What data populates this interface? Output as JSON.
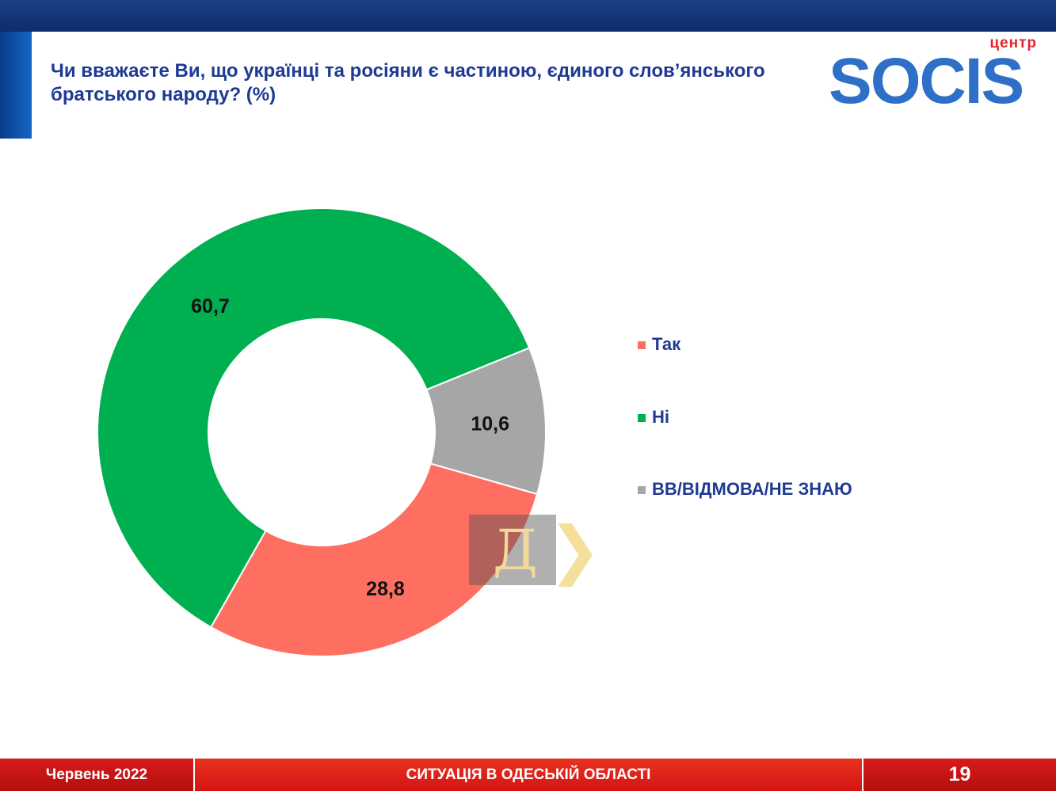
{
  "header": {
    "question": "Чи вважаєте Ви, що українці та росіяни є частиною, єдиного слов’янського братського народу? (%)"
  },
  "logo": {
    "top_text": "центр",
    "main_text": "SOCIS"
  },
  "chart_data": {
    "type": "pie",
    "donut": true,
    "categories": [
      "Так",
      "Ні",
      "ВВ/ВІДМОВА/НЕ ЗНАЮ"
    ],
    "values": [
      28.8,
      60.7,
      10.6
    ],
    "value_labels": [
      "28,8",
      "60,7",
      "10,6"
    ],
    "colors": [
      "#ff6f61",
      "#00b050",
      "#a6a6a6"
    ],
    "legend": "right"
  },
  "watermark": {
    "letter": "Д",
    "chevron": "❯"
  },
  "footer": {
    "date": "Червень 2022",
    "title": "СИТУАЦІЯ В ОДЕСЬКІЙ ОБЛАСТІ",
    "page": "19"
  }
}
